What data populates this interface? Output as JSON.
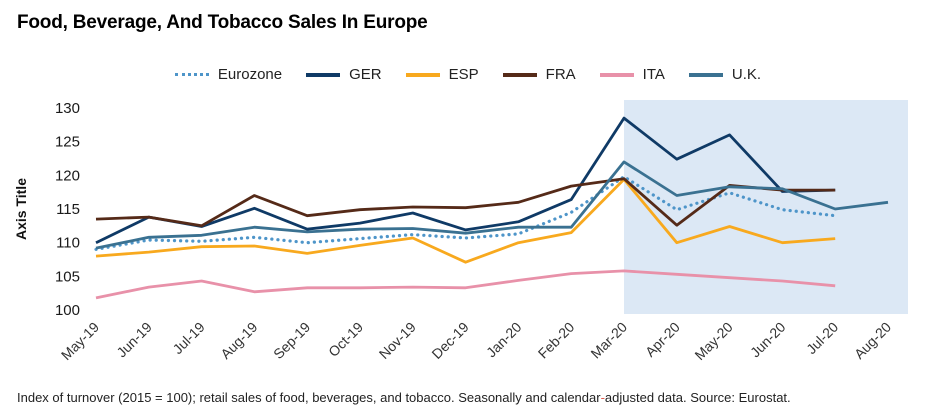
{
  "title": "Food, Beverage, And Tobacco Sales In Europe",
  "footnote": {
    "part1": "Index of turnover (2015 = 100); retail sales of food, beverages, and tobacco. Seasonally and calendar",
    "hyphen": "-",
    "part2": "adjusted  data. Source: Eurostat."
  },
  "chart_data": {
    "type": "line",
    "title": "Food, Beverage, And Tobacco Sales In Europe",
    "xlabel": "",
    "ylabel": "Axis Title",
    "ylim": [
      100,
      130
    ],
    "yticks": [
      100,
      105,
      110,
      115,
      120,
      125,
      130
    ],
    "grid": false,
    "legend_position": "top",
    "categories": [
      "May-19",
      "Jun-19",
      "Jul-19",
      "Aug-19",
      "Sep-19",
      "Oct-19",
      "Nov-19",
      "Dec-19",
      "Jan-20",
      "Feb-20",
      "Mar-20",
      "Apr-20",
      "May-20",
      "Jun-20",
      "Jul-20",
      "Aug-20"
    ],
    "shaded_region": {
      "from": "Mar-20",
      "to": "Aug-20",
      "color": "#dce8f5"
    },
    "series": [
      {
        "name": "Eurozone",
        "color": "#4e95c9",
        "dash": "dotted",
        "values": [
          109.0,
          110.4,
          110.2,
          110.8,
          110.0,
          110.6,
          111.2,
          110.7,
          111.3,
          114.5,
          119.8,
          114.9,
          117.4,
          114.9,
          114.0,
          null
        ]
      },
      {
        "name": "GER",
        "color": "#0f3a66",
        "dash": "solid",
        "values": [
          110.0,
          113.8,
          112.4,
          115.1,
          112.0,
          112.9,
          114.4,
          111.9,
          113.1,
          116.4,
          128.5,
          122.4,
          126.0,
          117.6,
          117.8,
          null
        ]
      },
      {
        "name": "ESP",
        "color": "#f8a91e",
        "dash": "solid",
        "values": [
          108.0,
          108.6,
          109.4,
          109.5,
          108.4,
          109.6,
          110.7,
          107.1,
          110.0,
          111.5,
          119.4,
          110.0,
          112.4,
          110.0,
          110.6,
          null
        ]
      },
      {
        "name": "FRA",
        "color": "#552a18",
        "dash": "solid",
        "values": [
          113.5,
          113.8,
          112.5,
          117.0,
          114.0,
          114.9,
          115.3,
          115.2,
          116.0,
          118.4,
          119.5,
          112.6,
          118.5,
          117.8,
          117.8,
          null
        ]
      },
      {
        "name": "ITA",
        "color": "#e891a9",
        "dash": "solid",
        "values": [
          101.8,
          103.4,
          104.3,
          102.7,
          103.3,
          103.3,
          103.4,
          103.3,
          104.4,
          105.4,
          105.8,
          105.3,
          104.8,
          104.3,
          103.6,
          null
        ]
      },
      {
        "name": "U.K.",
        "color": "#3a7191",
        "dash": "solid",
        "values": [
          109.2,
          110.8,
          111.1,
          112.3,
          111.6,
          112.0,
          112.1,
          111.4,
          112.3,
          112.3,
          122.0,
          117.0,
          118.3,
          118.0,
          115.0,
          116.0
        ]
      }
    ]
  }
}
